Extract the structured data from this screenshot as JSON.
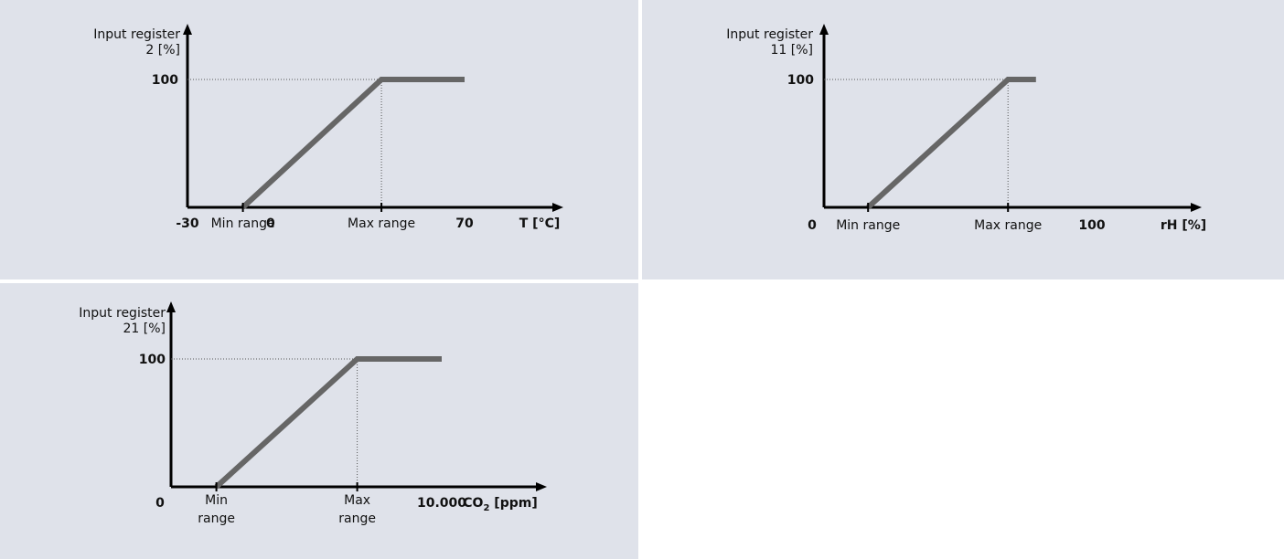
{
  "chart_data": [
    {
      "type": "line",
      "y_label_lines": [
        "Input  register",
        "2 [%]"
      ],
      "x_label": "T [°C]",
      "y_tick": "100",
      "x_scale_labels": [
        {
          "label": "-30",
          "bold": true,
          "at": -30
        },
        {
          "label": "Min range",
          "bold": false,
          "at": -10
        },
        {
          "label": "0",
          "bold": true,
          "at": 0
        },
        {
          "label": "Max range",
          "bold": false,
          "at": 40
        },
        {
          "label": "70",
          "bold": true,
          "at": 70
        }
      ],
      "x_range": [
        -30,
        70
      ],
      "y_range": [
        0,
        100
      ],
      "series": [
        {
          "x": [
            -10,
            40,
            70
          ],
          "y": [
            0,
            100,
            100
          ],
          "color": "#666666"
        }
      ]
    },
    {
      "type": "line",
      "y_label_lines": [
        "Input  register",
        "11  [%]"
      ],
      "x_label": "rH [%]",
      "y_tick": "100",
      "x_scale_labels": [
        {
          "label": "0",
          "bold": true,
          "at": 0
        },
        {
          "label": "Min range",
          "bold": false,
          "at": 20
        },
        {
          "label": "Max range",
          "bold": false,
          "at": 70
        },
        {
          "label": "100",
          "bold": true,
          "at": 100
        }
      ],
      "x_range": [
        0,
        100
      ],
      "y_range": [
        0,
        100
      ],
      "series": [
        {
          "x": [
            20,
            70,
            80
          ],
          "y": [
            0,
            100,
            100
          ],
          "color": "#666666"
        }
      ]
    },
    {
      "type": "line",
      "y_label_lines": [
        "Input register",
        "21 [%]"
      ],
      "x_label": "CO",
      "x_label_sub": "2",
      "x_label_suffix": " [ppm]",
      "y_tick": "100",
      "x_scale_labels": [
        {
          "label": "0",
          "bold": true,
          "at": 0
        },
        {
          "label": "Min\nrange",
          "bold": false,
          "at": 2000
        },
        {
          "label": "Max\nrange",
          "bold": false,
          "at": 7000
        },
        {
          "label": "10.000",
          "bold": true,
          "at": 10000
        }
      ],
      "x_range": [
        0,
        10000
      ],
      "y_range": [
        0,
        100
      ],
      "series": [
        {
          "x": [
            2000,
            7000,
            10000
          ],
          "y": [
            0,
            100,
            100
          ],
          "color": "#666666"
        }
      ]
    }
  ]
}
